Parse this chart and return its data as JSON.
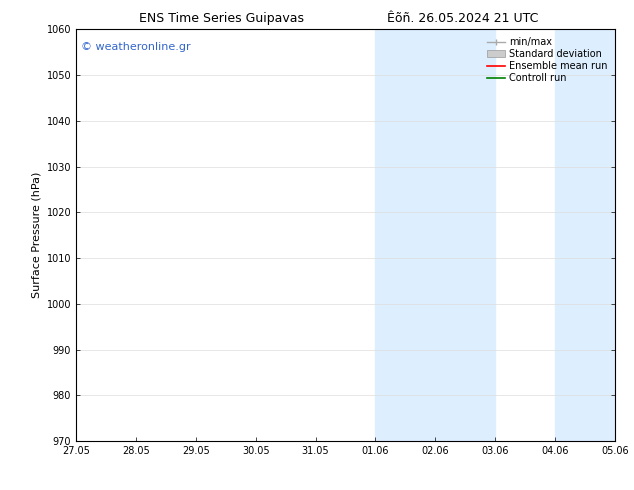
{
  "title_left": "ENS Time Series Guipavas",
  "title_right": "Êõñ. 26.05.2024 21 UTC",
  "ylabel": "Surface Pressure (hPa)",
  "ylim": [
    970,
    1060
  ],
  "yticks": [
    970,
    980,
    990,
    1000,
    1010,
    1020,
    1030,
    1040,
    1050,
    1060
  ],
  "xtick_labels": [
    "27.05",
    "28.05",
    "29.05",
    "30.05",
    "31.05",
    "01.06",
    "02.06",
    "03.06",
    "04.06",
    "05.06"
  ],
  "xtick_positions": [
    0,
    1,
    2,
    3,
    4,
    5,
    6,
    7,
    8,
    9
  ],
  "shaded_regions": [
    {
      "x_start": 5,
      "x_end": 7
    },
    {
      "x_start": 8,
      "x_end": 9
    }
  ],
  "shade_color": "#ddeeff",
  "watermark_text": "© weatheronline.gr",
  "watermark_color": "#3366cc",
  "legend_entries": [
    {
      "label": "min/max",
      "color": "#aaaaaa",
      "lw": 1.0,
      "style": "line_with_cap"
    },
    {
      "label": "Standard deviation",
      "color": "#cccccc",
      "lw": 5,
      "style": "bar"
    },
    {
      "label": "Ensemble mean run",
      "color": "red",
      "lw": 1.2,
      "style": "line"
    },
    {
      "label": "Controll run",
      "color": "green",
      "lw": 1.2,
      "style": "line"
    }
  ],
  "background_color": "#ffffff",
  "plot_bg_color": "#ffffff",
  "grid_color": "#dddddd",
  "font_size_title": 9,
  "font_size_ticks": 7,
  "font_size_ylabel": 8,
  "font_size_legend": 7,
  "font_size_watermark": 8
}
